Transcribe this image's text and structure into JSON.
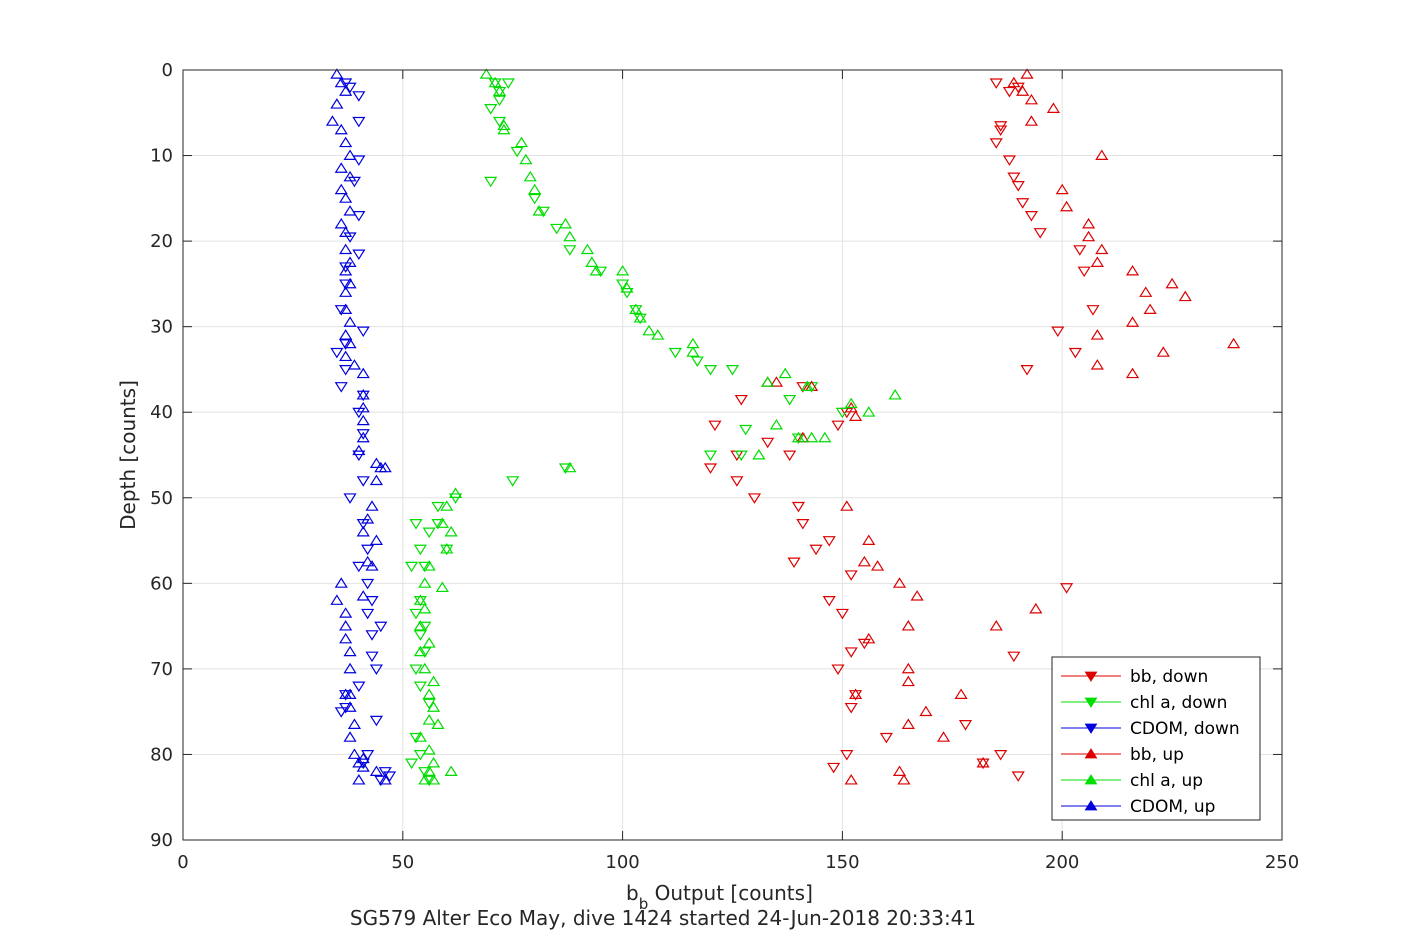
{
  "chart_data": {
    "type": "scatter",
    "title": "",
    "xlabel_main": "b",
    "xlabel_sub": "b",
    "xlabel_rest": " Output [counts]",
    "ylabel": "Depth [counts]",
    "caption": "SG579 Alter Eco May, dive 1424 started 24-Jun-2018 20:33:41",
    "xlim": [
      0,
      250
    ],
    "ylim": [
      0,
      90
    ],
    "y_reversed": true,
    "grid": true,
    "legend_position": "bottom-right",
    "xticks": [
      0,
      50,
      100,
      150,
      200,
      250
    ],
    "yticks": [
      0,
      10,
      20,
      30,
      40,
      50,
      60,
      70,
      80,
      90
    ],
    "series": [
      {
        "name": "bb, down",
        "color": "#dd0000",
        "marker": "triangle-down",
        "points": [
          [
            185,
            1.5
          ],
          [
            188,
            2.5
          ],
          [
            190,
            2
          ],
          [
            186,
            6.5
          ],
          [
            186,
            7
          ],
          [
            185,
            8.5
          ],
          [
            188,
            10.5
          ],
          [
            189,
            12.5
          ],
          [
            190,
            13.5
          ],
          [
            191,
            15.5
          ],
          [
            193,
            17
          ],
          [
            195,
            19
          ],
          [
            204,
            21
          ],
          [
            205,
            23.5
          ],
          [
            207,
            28
          ],
          [
            199,
            30.5
          ],
          [
            203,
            33
          ],
          [
            192,
            35
          ],
          [
            141,
            37
          ],
          [
            127,
            38.5
          ],
          [
            151,
            40
          ],
          [
            149,
            41.5
          ],
          [
            121,
            41.5
          ],
          [
            133,
            43.5
          ],
          [
            126,
            45
          ],
          [
            138,
            45
          ],
          [
            120,
            46.5
          ],
          [
            126,
            48
          ],
          [
            130,
            50
          ],
          [
            140,
            51
          ],
          [
            141,
            53
          ],
          [
            147,
            55
          ],
          [
            144,
            56
          ],
          [
            139,
            57.5
          ],
          [
            152,
            59
          ],
          [
            147,
            62
          ],
          [
            150,
            63.5
          ],
          [
            155,
            67
          ],
          [
            152,
            68
          ],
          [
            149,
            70
          ],
          [
            153,
            73
          ],
          [
            152,
            74.5
          ],
          [
            160,
            78
          ],
          [
            151,
            80
          ],
          [
            148,
            81.5
          ],
          [
            186,
            80
          ],
          [
            182,
            81
          ],
          [
            190,
            82.5
          ],
          [
            201,
            60.5
          ],
          [
            189,
            68.5
          ],
          [
            178,
            76.5
          ]
        ]
      },
      {
        "name": "chl a, down",
        "color": "#00dd00",
        "marker": "triangle-down",
        "points": [
          [
            71,
            1.5
          ],
          [
            74,
            1.5
          ],
          [
            72,
            2.5
          ],
          [
            72,
            3.5
          ],
          [
            70,
            4.5
          ],
          [
            72,
            6
          ],
          [
            76,
            9.5
          ],
          [
            70,
            13
          ],
          [
            80,
            15
          ],
          [
            82,
            16.5
          ],
          [
            85,
            18.5
          ],
          [
            88,
            21
          ],
          [
            95,
            23.5
          ],
          [
            100,
            25
          ],
          [
            101,
            26
          ],
          [
            103,
            28
          ],
          [
            104,
            29
          ],
          [
            112,
            33
          ],
          [
            117,
            34
          ],
          [
            120,
            35
          ],
          [
            125,
            35
          ],
          [
            138,
            38.5
          ],
          [
            128,
            42
          ],
          [
            140,
            43
          ],
          [
            143,
            37
          ],
          [
            127,
            45
          ],
          [
            120,
            45
          ],
          [
            150,
            40
          ],
          [
            87,
            46.5
          ],
          [
            75,
            48
          ],
          [
            62,
            50
          ],
          [
            58,
            51
          ],
          [
            58,
            53
          ],
          [
            53,
            53
          ],
          [
            60,
            56
          ],
          [
            56,
            54
          ],
          [
            54,
            56
          ],
          [
            52,
            58
          ],
          [
            55,
            58
          ],
          [
            54,
            62
          ],
          [
            53,
            63.5
          ],
          [
            55,
            65
          ],
          [
            54,
            66
          ],
          [
            55,
            68
          ],
          [
            53,
            70
          ],
          [
            54,
            72
          ],
          [
            56,
            74
          ],
          [
            53,
            78
          ],
          [
            54,
            80
          ],
          [
            52,
            81
          ],
          [
            55,
            82
          ],
          [
            56,
            83
          ]
        ]
      },
      {
        "name": "CDOM, down",
        "color": "#0000dd",
        "marker": "triangle-down",
        "points": [
          [
            37,
            1.5
          ],
          [
            38,
            2
          ],
          [
            40,
            3
          ],
          [
            40,
            6
          ],
          [
            40,
            10.5
          ],
          [
            39,
            13
          ],
          [
            40,
            17
          ],
          [
            38,
            19.5
          ],
          [
            40,
            21.5
          ],
          [
            37,
            23
          ],
          [
            37,
            25
          ],
          [
            36,
            28
          ],
          [
            41,
            30.5
          ],
          [
            37,
            32
          ],
          [
            35,
            33
          ],
          [
            37,
            35
          ],
          [
            36,
            37
          ],
          [
            41,
            38
          ],
          [
            40,
            40
          ],
          [
            41,
            42.5
          ],
          [
            40,
            45
          ],
          [
            41,
            48
          ],
          [
            38,
            50
          ],
          [
            41,
            53
          ],
          [
            42,
            56
          ],
          [
            40,
            58
          ],
          [
            42,
            60
          ],
          [
            43,
            62
          ],
          [
            42,
            63.5
          ],
          [
            45,
            65
          ],
          [
            43,
            66
          ],
          [
            43,
            68.5
          ],
          [
            44,
            70
          ],
          [
            40,
            72
          ],
          [
            37,
            73
          ],
          [
            37,
            74.5
          ],
          [
            36,
            75
          ],
          [
            44,
            76
          ],
          [
            42,
            80
          ],
          [
            41,
            81
          ],
          [
            46,
            82
          ],
          [
            45,
            83
          ],
          [
            47,
            82.5
          ]
        ]
      },
      {
        "name": "bb, up",
        "color": "#dd0000",
        "marker": "triangle-up",
        "points": [
          [
            192,
            0.5
          ],
          [
            189,
            1.5
          ],
          [
            191,
            2.5
          ],
          [
            193,
            3.5
          ],
          [
            198,
            4.5
          ],
          [
            193,
            6
          ],
          [
            209,
            10
          ],
          [
            200,
            14
          ],
          [
            201,
            16
          ],
          [
            206,
            18
          ],
          [
            206,
            19.5
          ],
          [
            209,
            21
          ],
          [
            208,
            22.5
          ],
          [
            216,
            23.5
          ],
          [
            225,
            25
          ],
          [
            219,
            26
          ],
          [
            228,
            26.5
          ],
          [
            220,
            28
          ],
          [
            216,
            29.5
          ],
          [
            208,
            31
          ],
          [
            223,
            33
          ],
          [
            239,
            32
          ],
          [
            208,
            34.5
          ],
          [
            216,
            35.5
          ],
          [
            133,
            36.5
          ],
          [
            135,
            36.5
          ],
          [
            143,
            37
          ],
          [
            152,
            39.5
          ],
          [
            153,
            40.5
          ],
          [
            141,
            43
          ],
          [
            151,
            51
          ],
          [
            156,
            55
          ],
          [
            155,
            57.5
          ],
          [
            158,
            58
          ],
          [
            163,
            60
          ],
          [
            167,
            61.5
          ],
          [
            165,
            65
          ],
          [
            156,
            66.5
          ],
          [
            165,
            70
          ],
          [
            165,
            71.5
          ],
          [
            153,
            73
          ],
          [
            165,
            76.5
          ],
          [
            177,
            73
          ],
          [
            169,
            75
          ],
          [
            173,
            78
          ],
          [
            163,
            82
          ],
          [
            164,
            83
          ],
          [
            152,
            83
          ],
          [
            194,
            63
          ],
          [
            185,
            65
          ],
          [
            199,
            81
          ],
          [
            182,
            81
          ]
        ]
      },
      {
        "name": "chl a, up",
        "color": "#00dd00",
        "marker": "triangle-up",
        "points": [
          [
            69,
            0.5
          ],
          [
            71,
            1.5
          ],
          [
            72,
            2.5
          ],
          [
            73,
            6.5
          ],
          [
            73,
            7
          ],
          [
            77,
            8.5
          ],
          [
            78,
            10.5
          ],
          [
            79,
            12.5
          ],
          [
            80,
            14
          ],
          [
            81,
            16.5
          ],
          [
            87,
            18
          ],
          [
            88,
            19.5
          ],
          [
            92,
            21
          ],
          [
            93,
            22.5
          ],
          [
            94,
            23.5
          ],
          [
            100,
            23.5
          ],
          [
            101,
            25.5
          ],
          [
            103,
            28
          ],
          [
            104,
            29
          ],
          [
            106,
            30.5
          ],
          [
            108,
            31
          ],
          [
            116,
            32
          ],
          [
            116,
            33
          ],
          [
            133,
            36.5
          ],
          [
            137,
            35.5
          ],
          [
            142,
            37
          ],
          [
            162,
            38
          ],
          [
            152,
            39
          ],
          [
            156,
            40
          ],
          [
            135,
            41.5
          ],
          [
            143,
            43
          ],
          [
            146,
            43
          ],
          [
            131,
            45
          ],
          [
            140,
            43
          ],
          [
            88,
            46.5
          ],
          [
            62,
            49.5
          ],
          [
            60,
            51
          ],
          [
            61,
            54
          ],
          [
            59,
            53
          ],
          [
            60,
            56
          ],
          [
            56,
            58
          ],
          [
            55,
            60
          ],
          [
            59,
            60.5
          ],
          [
            54,
            62
          ],
          [
            55,
            63
          ],
          [
            54,
            65
          ],
          [
            56,
            67
          ],
          [
            54,
            68
          ],
          [
            55,
            70
          ],
          [
            57,
            71.5
          ],
          [
            56,
            73
          ],
          [
            57,
            74.5
          ],
          [
            56,
            76
          ],
          [
            58,
            76.5
          ],
          [
            54,
            78
          ],
          [
            56,
            79.5
          ],
          [
            57,
            81
          ],
          [
            56,
            82
          ],
          [
            61,
            82
          ],
          [
            57,
            83
          ],
          [
            55,
            83
          ]
        ]
      },
      {
        "name": "CDOM, up",
        "color": "#0000dd",
        "marker": "triangle-up",
        "points": [
          [
            35,
            0.5
          ],
          [
            36,
            1.5
          ],
          [
            37,
            2.5
          ],
          [
            35,
            4
          ],
          [
            34,
            6
          ],
          [
            36,
            7
          ],
          [
            37,
            8.5
          ],
          [
            38,
            10
          ],
          [
            36,
            11.5
          ],
          [
            38,
            12.5
          ],
          [
            36,
            14
          ],
          [
            37,
            15
          ],
          [
            38,
            16.5
          ],
          [
            36,
            18
          ],
          [
            37,
            19
          ],
          [
            37,
            21
          ],
          [
            38,
            22.5
          ],
          [
            37,
            23.5
          ],
          [
            38,
            25
          ],
          [
            37,
            26
          ],
          [
            37,
            28
          ],
          [
            38,
            29.5
          ],
          [
            37,
            31
          ],
          [
            38,
            32
          ],
          [
            37,
            33.5
          ],
          [
            39,
            34.5
          ],
          [
            41,
            35.5
          ],
          [
            41,
            38
          ],
          [
            41,
            39.5
          ],
          [
            41,
            41
          ],
          [
            41,
            43
          ],
          [
            40,
            44.5
          ],
          [
            44,
            46
          ],
          [
            45,
            46.5
          ],
          [
            46,
            46.5
          ],
          [
            44,
            48
          ],
          [
            43,
            51
          ],
          [
            42,
            52.5
          ],
          [
            41,
            54
          ],
          [
            44,
            55
          ],
          [
            43,
            58
          ],
          [
            42,
            57.5
          ],
          [
            36,
            60
          ],
          [
            41,
            61.5
          ],
          [
            35,
            62
          ],
          [
            37,
            63.5
          ],
          [
            37,
            65
          ],
          [
            37,
            66.5
          ],
          [
            38,
            68
          ],
          [
            38,
            70
          ],
          [
            38,
            73
          ],
          [
            37,
            73
          ],
          [
            38,
            74.5
          ],
          [
            39,
            76.5
          ],
          [
            38,
            78
          ],
          [
            39,
            80
          ],
          [
            41,
            80.5
          ],
          [
            40,
            83
          ],
          [
            44,
            82
          ],
          [
            46,
            83
          ],
          [
            40,
            81
          ],
          [
            41,
            81.5
          ]
        ]
      }
    ]
  }
}
